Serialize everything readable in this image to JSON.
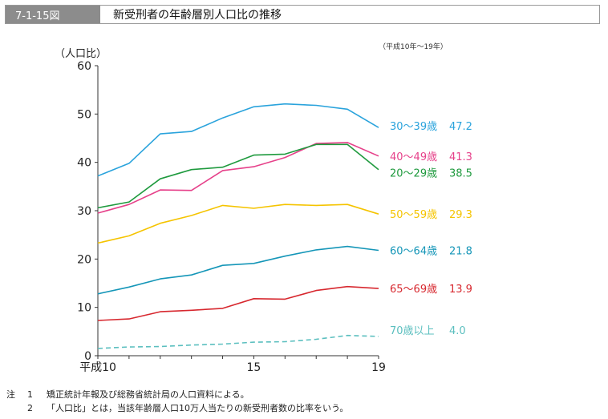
{
  "figure_number": "7-1-15図",
  "figure_title": "新受刑者の年齢層別人口比の推移",
  "period_note": "（平成10年～19年）",
  "notes": {
    "lead": "注",
    "items": [
      {
        "num": "1",
        "text": "矯正統計年報及び総務省統計局の人口資料による。"
      },
      {
        "num": "2",
        "text": "「人口比」とは，当該年齢層人口10万人当たりの新受刑者数の比率をいう。"
      }
    ]
  },
  "colors": {
    "title_bg": "#8c8c8c",
    "s30": "#2aa3dc",
    "s40": "#e6418a",
    "s20": "#1f9a3e",
    "s50": "#f5c400",
    "s60": "#1596b8",
    "s65": "#d7282f",
    "s70": "#5bbfbf"
  },
  "chart_data": {
    "type": "line",
    "ylabel": "（人口比）",
    "ylim": [
      0,
      60
    ],
    "yticks": [
      0,
      10,
      20,
      30,
      40,
      50,
      60
    ],
    "x": [
      10,
      11,
      12,
      13,
      14,
      15,
      16,
      17,
      18,
      19
    ],
    "xlim": [
      10,
      19
    ],
    "xtick_labels": [
      {
        "x": 10,
        "label": "平成10"
      },
      {
        "x": 15,
        "label": "15"
      },
      {
        "x": 19,
        "label": "19"
      }
    ],
    "series": [
      {
        "name": "30～39歳",
        "last_label": "47.2",
        "color_key": "s30",
        "dashed": false,
        "values": [
          37.2,
          39.8,
          45.9,
          46.4,
          49.2,
          51.5,
          52.1,
          51.8,
          51.0,
          47.2
        ]
      },
      {
        "name": "40～49歳",
        "last_label": "41.3",
        "color_key": "s40",
        "dashed": false,
        "values": [
          29.5,
          31.3,
          34.3,
          34.2,
          38.3,
          39.1,
          41.0,
          43.9,
          44.1,
          41.3
        ]
      },
      {
        "name": "20～29歳",
        "last_label": "38.5",
        "color_key": "s20",
        "dashed": false,
        "values": [
          30.6,
          31.8,
          36.6,
          38.5,
          39.0,
          41.5,
          41.7,
          43.7,
          43.7,
          38.5
        ]
      },
      {
        "name": "50～59歳",
        "last_label": "29.3",
        "color_key": "s50",
        "dashed": false,
        "values": [
          23.3,
          24.8,
          27.4,
          29.0,
          31.1,
          30.5,
          31.3,
          31.1,
          31.3,
          29.3
        ]
      },
      {
        "name": "60～64歳",
        "last_label": "21.8",
        "color_key": "s60",
        "dashed": false,
        "values": [
          12.8,
          14.2,
          15.9,
          16.7,
          18.7,
          19.1,
          20.6,
          21.9,
          22.6,
          21.8
        ]
      },
      {
        "name": "65～69歳",
        "last_label": "13.9",
        "color_key": "s65",
        "dashed": false,
        "values": [
          7.3,
          7.6,
          9.1,
          9.4,
          9.8,
          11.8,
          11.7,
          13.5,
          14.3,
          13.9
        ]
      },
      {
        "name": "70歳以上",
        "last_label": "4.0",
        "color_key": "s70",
        "dashed": true,
        "values": [
          1.5,
          1.8,
          1.9,
          2.2,
          2.4,
          2.8,
          2.9,
          3.4,
          4.2,
          4.0
        ]
      }
    ]
  }
}
